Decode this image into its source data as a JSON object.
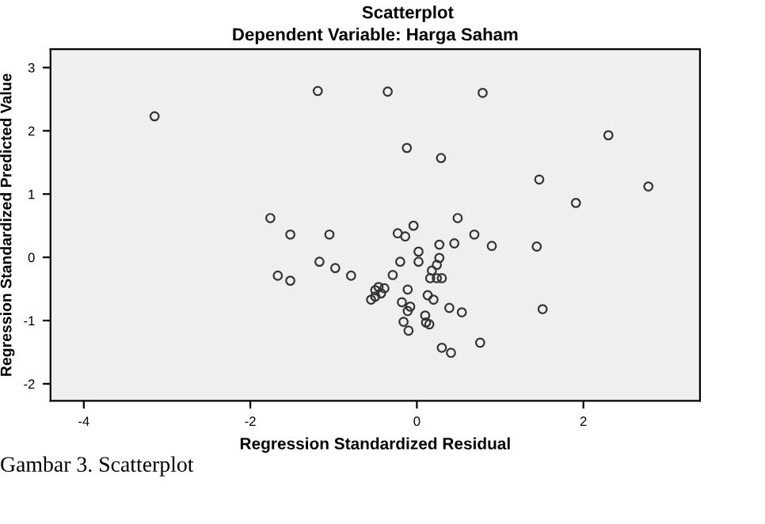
{
  "chart_data": {
    "type": "scatter",
    "title": "Scatterplot",
    "subtitle": "Dependent Variable: Harga Saham",
    "xlabel": "Regression Standardized Residual",
    "ylabel": "Regression Standardized Predicted Value",
    "annotations": [
      "Gambar 3. Scatterplot"
    ],
    "marker": "circle",
    "grid": false,
    "legend": false,
    "xlim": [
      -4.4,
      3.4
    ],
    "xticks": [
      -4,
      -2,
      0,
      2
    ],
    "ylim": [
      -2.27,
      3.29
    ],
    "yticks": [
      -2,
      -1,
      0,
      1,
      2,
      3
    ],
    "series": [
      {
        "color": "#333333",
        "x": [
          -3.15,
          -1.19,
          -0.35,
          0.79,
          -0.12,
          0.29,
          2.3,
          1.47,
          2.78,
          1.91,
          -1.76,
          0.49,
          -1.52,
          -1.05,
          -0.23,
          -0.14,
          -0.04,
          0.69,
          0.27,
          0.45,
          0.9,
          1.44,
          0.02,
          0.02,
          -0.2,
          -1.17,
          -0.98,
          0.27,
          0.24,
          0.18,
          -0.79,
          -0.29,
          -1.67,
          -1.52,
          0.16,
          0.3,
          0.24,
          -0.46,
          -0.39,
          -0.5,
          -0.11,
          -0.43,
          -0.5,
          -0.55,
          0.13,
          0.2,
          -0.18,
          -0.08,
          -0.11,
          0.39,
          0.54,
          1.51,
          0.1,
          0.11,
          0.15,
          -0.16,
          -0.1,
          0.3,
          0.41,
          0.76
        ],
        "values": [
          2.23,
          2.63,
          2.62,
          2.6,
          1.73,
          1.57,
          1.93,
          1.23,
          1.12,
          0.86,
          0.62,
          0.62,
          0.36,
          0.36,
          0.38,
          0.33,
          0.5,
          0.36,
          0.2,
          0.22,
          0.18,
          0.17,
          0.09,
          -0.07,
          -0.07,
          -0.07,
          -0.17,
          -0.01,
          -0.12,
          -0.21,
          -0.29,
          -0.28,
          -0.29,
          -0.37,
          -0.33,
          -0.33,
          -0.33,
          -0.47,
          -0.49,
          -0.52,
          -0.51,
          -0.57,
          -0.62,
          -0.67,
          -0.6,
          -0.67,
          -0.71,
          -0.78,
          -0.85,
          -0.8,
          -0.87,
          -0.82,
          -0.92,
          -1.03,
          -1.06,
          -1.02,
          -1.16,
          -1.43,
          -1.51,
          -1.35
        ]
      }
    ]
  }
}
